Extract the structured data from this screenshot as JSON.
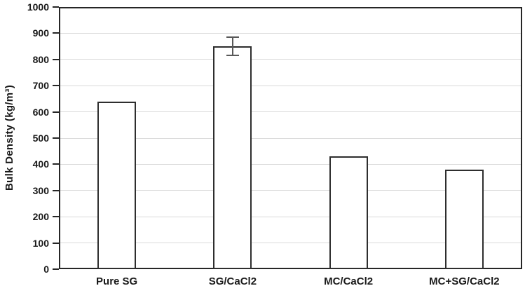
{
  "chart_data": {
    "type": "bar",
    "title": "",
    "xlabel": "",
    "ylabel": "Bulk Density (kg/m³)",
    "categories": [
      "Pure SG",
      "SG/CaCl2",
      "MC/CaCl2",
      "MC+SG/CaCl2"
    ],
    "series": [
      {
        "name": "Bulk Density",
        "values": [
          640,
          850,
          430,
          380
        ],
        "error_bars": [
          null,
          35,
          null,
          null
        ]
      }
    ],
    "ylim": [
      0,
      1000
    ],
    "ytick_step": 100,
    "ytick_labels": [
      "0",
      "100",
      "200",
      "300",
      "400",
      "500",
      "600",
      "700",
      "800",
      "900",
      "1000"
    ],
    "grid": "horizontal",
    "legend_position": "none",
    "colors": {
      "bar_fill": "#ffffff",
      "bar_border": "#2e2e2e",
      "grid_color": "#d9d9d9",
      "axis_color": "#262626",
      "error_bar_color": "#595959",
      "text_color": "#1a1a1a",
      "background": "#ffffff"
    }
  }
}
